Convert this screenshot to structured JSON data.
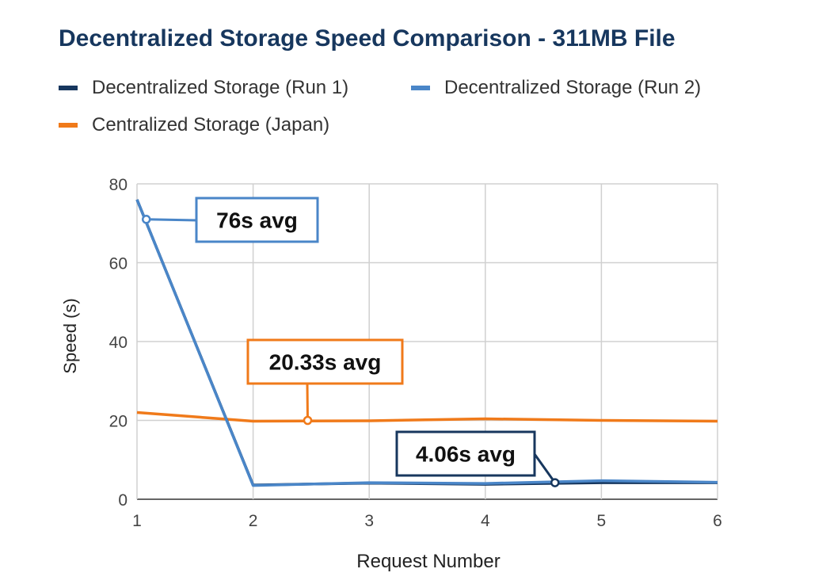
{
  "colors": {
    "run1": "#17375e",
    "run2": "#4a86c8",
    "japan": "#f07a1a",
    "grid": "#d0d0d0",
    "axis": "#333333"
  },
  "chart_data": {
    "type": "line",
    "title": "Decentralized Storage Speed Comparison - 311MB File",
    "xlabel": "Request Number",
    "ylabel": "Speed (s)",
    "x": [
      1,
      2,
      3,
      4,
      5,
      6
    ],
    "xlim": [
      1,
      6
    ],
    "ylim": [
      0,
      80
    ],
    "yticks": [
      0,
      20,
      40,
      60,
      80
    ],
    "grid": true,
    "legend_position": "top",
    "series": [
      {
        "name": "Decentralized Storage (Run 1)",
        "color": "#17375e",
        "values": [
          76,
          3.6,
          4.1,
          3.8,
          4.2,
          4.2
        ]
      },
      {
        "name": "Decentralized Storage (Run 2)",
        "color": "#4a86c8",
        "values": [
          76,
          3.5,
          4.2,
          4.0,
          4.7,
          4.3
        ]
      },
      {
        "name": "Centralized Storage (Japan)",
        "color": "#f07a1a",
        "values": [
          22.0,
          19.8,
          19.9,
          20.4,
          20.0,
          19.8
        ]
      }
    ],
    "annotations": [
      {
        "text": "76s avg",
        "color": "#4a86c8",
        "x": 1.08,
        "y": 71
      },
      {
        "text": "20.33s avg",
        "color": "#f07a1a",
        "x": 2.47,
        "y": 20
      },
      {
        "text": "4.06s avg",
        "color": "#17375e",
        "x": 4.6,
        "y": 4.2
      }
    ]
  }
}
